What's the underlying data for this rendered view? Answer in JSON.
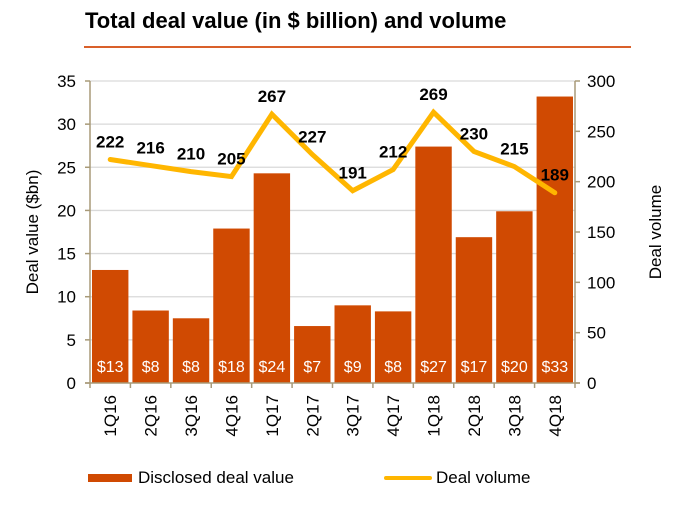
{
  "chart_data": {
    "type": "bar+line",
    "title": "Total deal value (in $ billion) and volume",
    "categories": [
      "1Q16",
      "2Q16",
      "3Q16",
      "4Q16",
      "1Q17",
      "2Q17",
      "3Q17",
      "4Q17",
      "1Q18",
      "2Q18",
      "3Q18",
      "4Q18"
    ],
    "series": [
      {
        "name": "Disclosed deal value",
        "type": "bar",
        "axis": "left",
        "color": "#d04a02",
        "values": [
          13.1,
          8.4,
          7.5,
          17.9,
          24.3,
          6.6,
          9.0,
          8.3,
          27.4,
          16.9,
          19.9,
          33.2
        ],
        "labels": [
          "$13",
          "$8",
          "$8",
          "$18",
          "$24",
          "$7",
          "$9",
          "$8",
          "$27",
          "$17",
          "$20",
          "$33"
        ]
      },
      {
        "name": "Deal volume",
        "type": "line",
        "axis": "right",
        "color": "#ffb600",
        "values": [
          222,
          216,
          210,
          205,
          267,
          227,
          191,
          212,
          269,
          230,
          215,
          189
        ],
        "labels": [
          "222",
          "216",
          "210",
          "205",
          "267",
          "227",
          "191",
          "212",
          "269",
          "230",
          "215",
          "189"
        ]
      }
    ],
    "ylabel": "Deal value ($bn)",
    "y2label": "Deal volume",
    "ylim": [
      0,
      35
    ],
    "y2lim": [
      0,
      300
    ],
    "yticks": [
      "0",
      "5",
      "10",
      "15",
      "20",
      "25",
      "30",
      "35"
    ],
    "y2ticks": [
      "0",
      "50",
      "100",
      "150",
      "200",
      "250",
      "300"
    ],
    "grid": true,
    "legend": "bottom",
    "rule_color": "#d9602a"
  }
}
